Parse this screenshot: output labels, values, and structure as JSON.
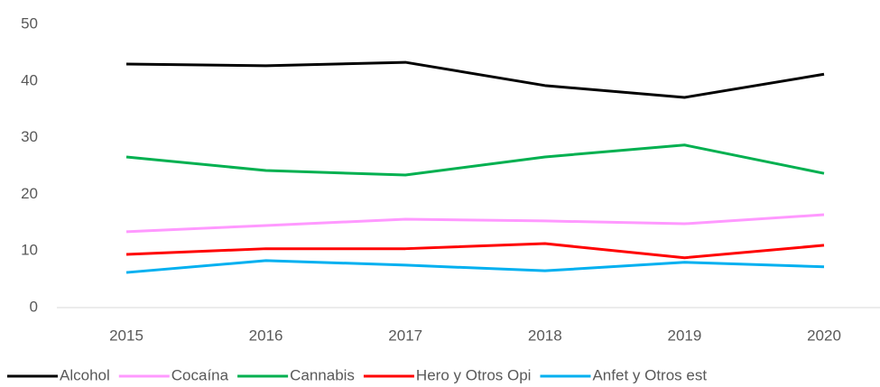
{
  "chart_data": {
    "type": "line",
    "categories": [
      "2015",
      "2016",
      "2017",
      "2018",
      "2019",
      "2020"
    ],
    "series": [
      {
        "name": "Alcohol",
        "color": "#000000",
        "values": [
          43.0,
          42.7,
          43.3,
          39.2,
          37.1,
          41.2
        ]
      },
      {
        "name": "Cocaína",
        "color": "#ff99ff",
        "values": [
          13.4,
          14.5,
          15.6,
          15.3,
          14.8,
          16.4
        ]
      },
      {
        "name": "Cannabis",
        "color": "#00b050",
        "values": [
          26.6,
          24.2,
          23.4,
          26.6,
          28.7,
          23.7
        ]
      },
      {
        "name": "Hero y Otros Opi",
        "color": "#ff0000",
        "values": [
          9.4,
          10.4,
          10.4,
          11.3,
          8.8,
          11.0
        ]
      },
      {
        "name": "Anfet y Otros est",
        "color": "#00b0f0",
        "values": [
          6.2,
          8.3,
          7.5,
          6.5,
          8.0,
          7.2
        ]
      }
    ],
    "ylim": [
      0,
      50
    ],
    "yticks": [
      0,
      10,
      20,
      30,
      40,
      50
    ],
    "grid": false,
    "legend": "bottom"
  }
}
